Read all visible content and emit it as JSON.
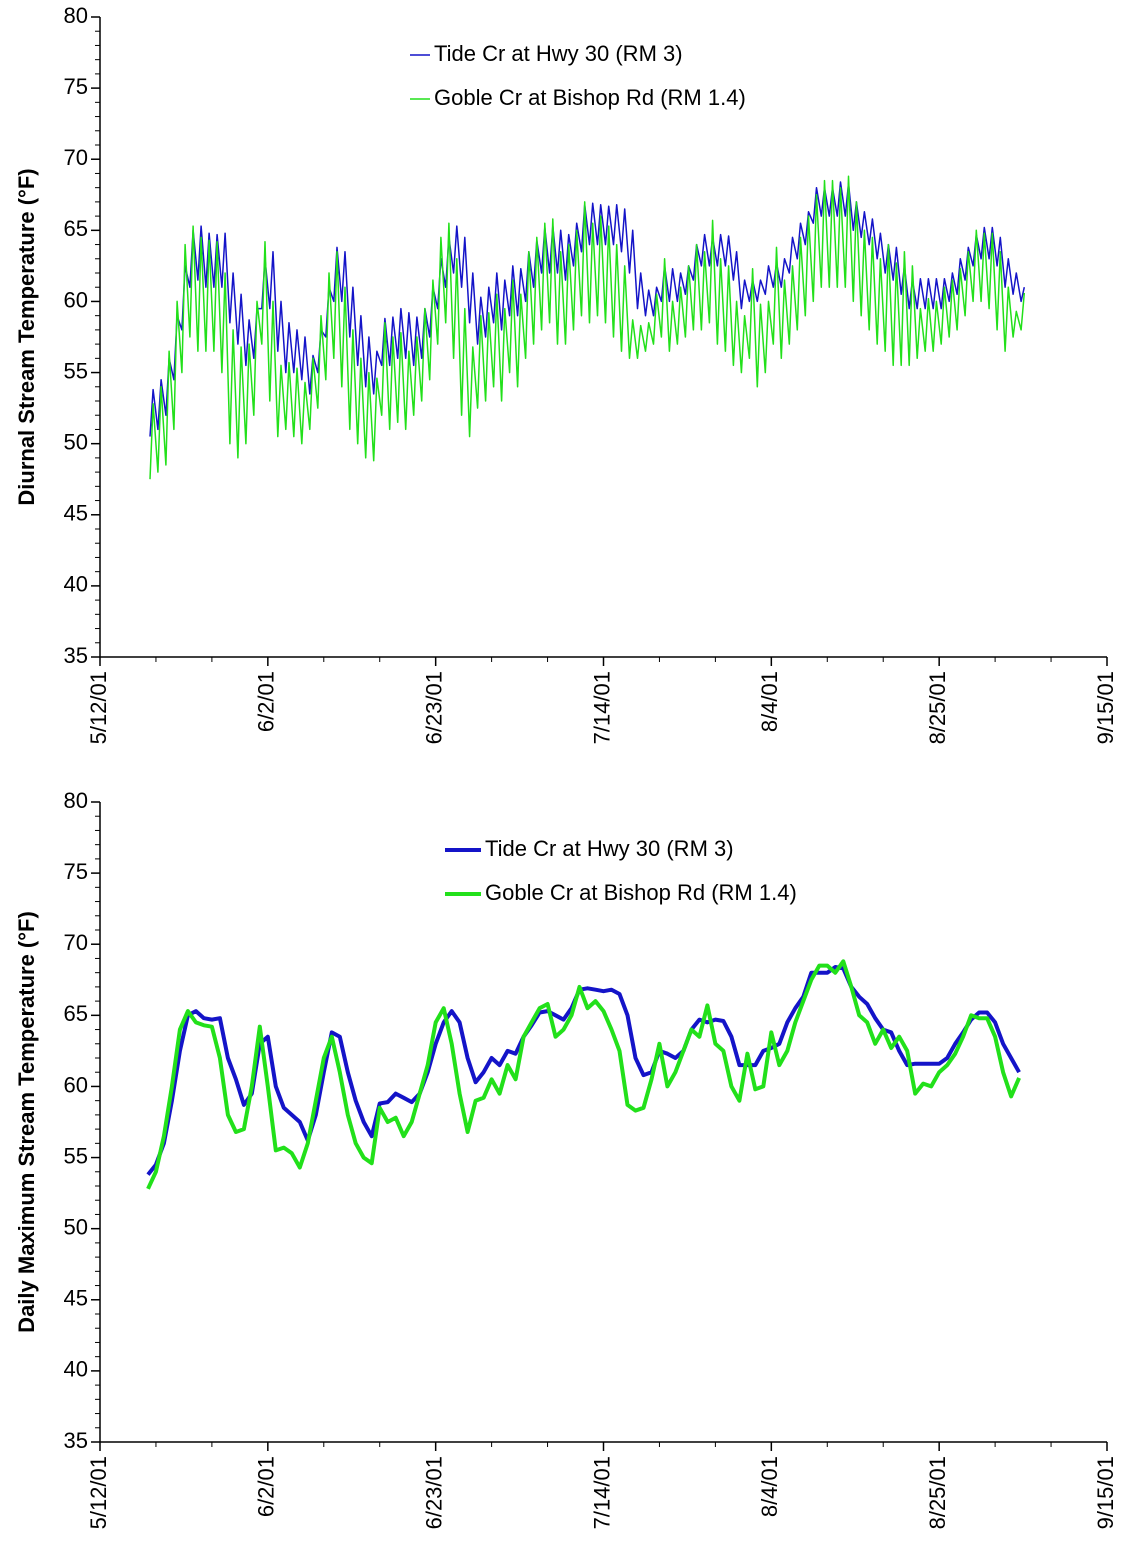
{
  "chart_data": [
    {
      "type": "range",
      "y_label": "Diurnal Stream Temperature (°F)",
      "legend": "top",
      "x": [
        "5/18/01",
        "5/19/01",
        "5/20/01",
        "5/21/01",
        "5/22/01",
        "5/23/01",
        "5/24/01",
        "5/25/01",
        "5/26/01",
        "5/27/01",
        "5/28/01",
        "5/29/01",
        "5/30/01",
        "5/31/01",
        "6/1/01",
        "6/2/01",
        "6/3/01",
        "6/4/01",
        "6/5/01",
        "6/6/01",
        "6/7/01",
        "6/8/01",
        "6/9/01",
        "6/10/01",
        "6/11/01",
        "6/12/01",
        "6/13/01",
        "6/14/01",
        "6/15/01",
        "6/16/01",
        "6/17/01",
        "6/18/01",
        "6/19/01",
        "6/20/01",
        "6/21/01",
        "6/22/01",
        "6/23/01",
        "6/24/01",
        "6/25/01",
        "6/26/01",
        "6/27/01",
        "6/28/01",
        "6/29/01",
        "6/30/01",
        "7/1/01",
        "7/2/01",
        "7/3/01",
        "7/4/01",
        "7/5/01",
        "7/6/01",
        "7/7/01",
        "7/8/01",
        "7/9/01",
        "7/10/01",
        "7/11/01",
        "7/12/01",
        "7/13/01",
        "7/14/01",
        "7/15/01",
        "7/16/01",
        "7/17/01",
        "7/18/01",
        "7/19/01",
        "7/20/01",
        "7/21/01",
        "7/22/01",
        "7/23/01",
        "7/24/01",
        "7/25/01",
        "7/26/01",
        "7/27/01",
        "7/28/01",
        "7/29/01",
        "7/30/01",
        "7/31/01",
        "8/1/01",
        "8/2/01",
        "8/3/01",
        "8/4/01",
        "8/5/01",
        "8/6/01",
        "8/7/01",
        "8/8/01",
        "8/9/01",
        "8/10/01",
        "8/11/01",
        "8/12/01",
        "8/13/01",
        "8/14/01",
        "8/15/01",
        "8/16/01",
        "8/17/01",
        "8/18/01",
        "8/19/01",
        "8/20/01",
        "8/21/01",
        "8/22/01",
        "8/23/01",
        "8/24/01",
        "8/25/01",
        "8/26/01",
        "8/27/01",
        "8/28/01",
        "8/29/01",
        "8/30/01",
        "8/31/01",
        "9/1/01",
        "9/2/01",
        "9/3/01",
        "9/4/01"
      ],
      "series": [
        {
          "name": "Tide Cr at Hwy 30 (RM 3)",
          "color": "#1414c8",
          "values": [
            53.8,
            54.5,
            56,
            59,
            62.5,
            65,
            65.3,
            64.8,
            64.7,
            64.8,
            62,
            60.5,
            58.7,
            59.5,
            63,
            63.5,
            60,
            58.5,
            58,
            57.5,
            56.2,
            58,
            61,
            63.8,
            63.5,
            61,
            59,
            57.5,
            56.5,
            58.8,
            58.9,
            59.5,
            59.2,
            58.9,
            59.5,
            61,
            63,
            64.5,
            65.3,
            64.5,
            62,
            60.3,
            61,
            62,
            61.5,
            62.5,
            62.3,
            63.5,
            64.3,
            65.2,
            65.3,
            65,
            64.7,
            65.5,
            66.8,
            66.9,
            66.8,
            66.7,
            66.8,
            66.5,
            65,
            62,
            60.8,
            61,
            62.5,
            62.3,
            62,
            62.5,
            64,
            64.7,
            64.5,
            64.7,
            64.6,
            63.5,
            61.5,
            61.5,
            61.5,
            62.5,
            62.7,
            63,
            64.5,
            65.5,
            66.3,
            68,
            68,
            68,
            68.4,
            68.3,
            67,
            66.3,
            65.8,
            64.8,
            64,
            63.8,
            62.5,
            61.5,
            61.6,
            61.6,
            61.6,
            61.6,
            62,
            63,
            63.8,
            64.7,
            65.2,
            65.2,
            64.5,
            63,
            62,
            61
          ],
          "min_values": [
            50.5,
            51,
            52,
            54.5,
            58,
            61,
            61.5,
            61,
            61,
            61,
            58.5,
            57,
            55.5,
            56,
            59.5,
            59.5,
            56.5,
            55,
            55,
            54.5,
            53.5,
            55,
            57.5,
            60,
            60,
            57.5,
            55.5,
            54,
            53.5,
            55.5,
            55.5,
            56,
            56,
            55.5,
            56,
            57.5,
            59.5,
            61,
            62,
            61,
            58.5,
            57,
            57.5,
            58.5,
            58,
            59,
            59,
            60,
            61,
            62,
            62,
            62,
            61.5,
            62.5,
            63.5,
            64,
            64,
            64,
            64,
            63.5,
            62,
            59.5,
            59,
            59,
            60,
            60,
            60,
            60.5,
            61.5,
            62.5,
            62.5,
            62.5,
            62.5,
            61.5,
            59.5,
            60,
            60,
            60.5,
            61,
            61,
            62,
            63,
            64,
            65.5,
            66,
            66,
            66,
            66,
            65,
            64.5,
            64,
            63,
            62,
            61.5,
            60.5,
            59.5,
            59.5,
            59.5,
            59.5,
            59.5,
            60,
            60.5,
            61.5,
            62.5,
            63,
            63,
            62.5,
            61,
            60.5,
            60
          ]
        },
        {
          "name": "Goble Cr at Bishop Rd (RM 1.4)",
          "color": "#22e01a",
          "values": [
            52.8,
            54,
            56.5,
            60,
            64,
            65.3,
            64.5,
            64.3,
            64.2,
            62,
            58,
            56.8,
            57,
            60,
            64.2,
            60,
            55.5,
            55.7,
            55.3,
            54.3,
            56,
            59,
            62,
            63.5,
            61,
            58,
            56,
            55,
            54.6,
            58.5,
            57.5,
            57.8,
            56.5,
            57.5,
            59.5,
            61.5,
            64.5,
            65.5,
            63,
            59.5,
            56.8,
            59,
            59.2,
            60.5,
            59.5,
            61.5,
            60.5,
            63.5,
            64.5,
            65.5,
            65.8,
            63.5,
            64,
            65,
            67,
            65.5,
            66,
            65.3,
            64,
            62.5,
            58.7,
            58.3,
            58.5,
            60.5,
            63,
            60,
            61,
            62.5,
            64,
            63.5,
            65.7,
            63,
            62.5,
            60,
            59,
            62.3,
            59.8,
            60,
            63.8,
            61.5,
            62.5,
            64.5,
            66,
            67.5,
            68.5,
            68.5,
            68,
            68.8,
            67,
            65,
            64.5,
            63,
            64,
            62.7,
            63.5,
            62.5,
            59.5,
            60.2,
            60,
            61,
            61.5,
            62.3,
            63.5,
            65,
            64.8,
            64.8,
            63.5,
            61,
            59.3,
            60.6
          ],
          "min_values": [
            47.5,
            48,
            48.5,
            51,
            55,
            57.5,
            56.5,
            56.5,
            56.5,
            55,
            50,
            49,
            50,
            52,
            57,
            53,
            50.5,
            51,
            50.5,
            50,
            51,
            52.5,
            54.5,
            56,
            54,
            51,
            50,
            49,
            48.8,
            52,
            51,
            51.5,
            51,
            52,
            53,
            54.5,
            57,
            58.5,
            56,
            52,
            50.5,
            52.5,
            53,
            54,
            53,
            55,
            54,
            56,
            57,
            58,
            58.5,
            57,
            57,
            58,
            59,
            58.5,
            59,
            58.5,
            57.5,
            56.5,
            56,
            56,
            56.5,
            57,
            57.5,
            56.5,
            57,
            57.5,
            58,
            58,
            58.5,
            57,
            56.5,
            55.5,
            55,
            56,
            54,
            55,
            57,
            56,
            57,
            58,
            59,
            60,
            61,
            61,
            61,
            61,
            60,
            59,
            58,
            57,
            56.5,
            55.5,
            55.5,
            55.5,
            56,
            56.5,
            56.5,
            57,
            57.5,
            58,
            59,
            60,
            60,
            59.5,
            58,
            56.5,
            57.5,
            58
          ]
        }
      ],
      "xlim": [
        "5/12/01",
        "9/15/01"
      ],
      "xticks": [
        "5/12/01",
        "6/2/01",
        "6/23/01",
        "7/14/01",
        "8/4/01",
        "8/25/01",
        "9/15/01"
      ],
      "ylim": [
        35,
        80
      ],
      "yticks": [
        35,
        40,
        45,
        50,
        55,
        60,
        65,
        70,
        75,
        80
      ]
    },
    {
      "type": "line",
      "y_label": "Daily Maximum Stream Temperature (°F)",
      "legend": "top",
      "x": [
        "5/18/01",
        "5/19/01",
        "5/20/01",
        "5/21/01",
        "5/22/01",
        "5/23/01",
        "5/24/01",
        "5/25/01",
        "5/26/01",
        "5/27/01",
        "5/28/01",
        "5/29/01",
        "5/30/01",
        "5/31/01",
        "6/1/01",
        "6/2/01",
        "6/3/01",
        "6/4/01",
        "6/5/01",
        "6/6/01",
        "6/7/01",
        "6/8/01",
        "6/9/01",
        "6/10/01",
        "6/11/01",
        "6/12/01",
        "6/13/01",
        "6/14/01",
        "6/15/01",
        "6/16/01",
        "6/17/01",
        "6/18/01",
        "6/19/01",
        "6/20/01",
        "6/21/01",
        "6/22/01",
        "6/23/01",
        "6/24/01",
        "6/25/01",
        "6/26/01",
        "6/27/01",
        "6/28/01",
        "6/29/01",
        "6/30/01",
        "7/1/01",
        "7/2/01",
        "7/3/01",
        "7/4/01",
        "7/5/01",
        "7/6/01",
        "7/7/01",
        "7/8/01",
        "7/9/01",
        "7/10/01",
        "7/11/01",
        "7/12/01",
        "7/13/01",
        "7/14/01",
        "7/15/01",
        "7/16/01",
        "7/17/01",
        "7/18/01",
        "7/19/01",
        "7/20/01",
        "7/21/01",
        "7/22/01",
        "7/23/01",
        "7/24/01",
        "7/25/01",
        "7/26/01",
        "7/27/01",
        "7/28/01",
        "7/29/01",
        "7/30/01",
        "7/31/01",
        "8/1/01",
        "8/2/01",
        "8/3/01",
        "8/4/01",
        "8/5/01",
        "8/6/01",
        "8/7/01",
        "8/8/01",
        "8/9/01",
        "8/10/01",
        "8/11/01",
        "8/12/01",
        "8/13/01",
        "8/14/01",
        "8/15/01",
        "8/16/01",
        "8/17/01",
        "8/18/01",
        "8/19/01",
        "8/20/01",
        "8/21/01",
        "8/22/01",
        "8/23/01",
        "8/24/01",
        "8/25/01",
        "8/26/01",
        "8/27/01",
        "8/28/01",
        "8/29/01",
        "8/30/01",
        "8/31/01",
        "9/1/01",
        "9/2/01",
        "9/3/01",
        "9/4/01"
      ],
      "series": [
        {
          "name": "Tide Cr at Hwy 30 (RM 3)",
          "color": "#1414c8",
          "values": [
            53.8,
            54.5,
            56,
            59,
            62.5,
            65,
            65.3,
            64.8,
            64.7,
            64.8,
            62,
            60.5,
            58.7,
            59.5,
            63,
            63.5,
            60,
            58.5,
            58,
            57.5,
            56.2,
            58,
            61,
            63.8,
            63.5,
            61,
            59,
            57.5,
            56.5,
            58.8,
            58.9,
            59.5,
            59.2,
            58.9,
            59.5,
            61,
            63,
            64.5,
            65.3,
            64.5,
            62,
            60.3,
            61,
            62,
            61.5,
            62.5,
            62.3,
            63.5,
            64.3,
            65.2,
            65.3,
            65,
            64.7,
            65.5,
            66.8,
            66.9,
            66.8,
            66.7,
            66.8,
            66.5,
            65,
            62,
            60.8,
            61,
            62.5,
            62.3,
            62,
            62.5,
            64,
            64.7,
            64.5,
            64.7,
            64.6,
            63.5,
            61.5,
            61.5,
            61.5,
            62.5,
            62.7,
            63,
            64.5,
            65.5,
            66.3,
            68,
            68,
            68,
            68.4,
            68.3,
            67,
            66.3,
            65.8,
            64.8,
            64,
            63.8,
            62.5,
            61.5,
            61.6,
            61.6,
            61.6,
            61.6,
            62,
            63,
            63.8,
            64.7,
            65.2,
            65.2,
            64.5,
            63,
            62,
            61
          ]
        },
        {
          "name": "Goble Cr at Bishop Rd (RM 1.4)",
          "color": "#22e01a",
          "values": [
            52.8,
            54,
            56.5,
            60,
            64,
            65.3,
            64.5,
            64.3,
            64.2,
            62,
            58,
            56.8,
            57,
            60,
            64.2,
            60,
            55.5,
            55.7,
            55.3,
            54.3,
            56,
            59,
            62,
            63.5,
            61,
            58,
            56,
            55,
            54.6,
            58.5,
            57.5,
            57.8,
            56.5,
            57.5,
            59.5,
            61.5,
            64.5,
            65.5,
            63,
            59.5,
            56.8,
            59,
            59.2,
            60.5,
            59.5,
            61.5,
            60.5,
            63.5,
            64.5,
            65.5,
            65.8,
            63.5,
            64,
            65,
            67,
            65.5,
            66,
            65.3,
            64,
            62.5,
            58.7,
            58.3,
            58.5,
            60.5,
            63,
            60,
            61,
            62.5,
            64,
            63.5,
            65.7,
            63,
            62.5,
            60,
            59,
            62.3,
            59.8,
            60,
            63.8,
            61.5,
            62.5,
            64.5,
            66,
            67.5,
            68.5,
            68.5,
            68,
            68.8,
            67,
            65,
            64.5,
            63,
            64,
            62.7,
            63.5,
            62.5,
            59.5,
            60.2,
            60,
            61,
            61.5,
            62.3,
            63.5,
            65,
            64.8,
            64.8,
            63.5,
            61,
            59.3,
            60.6
          ]
        }
      ],
      "xlim": [
        "5/12/01",
        "9/15/01"
      ],
      "xticks": [
        "5/12/01",
        "6/2/01",
        "6/23/01",
        "7/14/01",
        "8/4/01",
        "8/25/01",
        "9/15/01"
      ],
      "ylim": [
        35,
        80
      ],
      "yticks": [
        35,
        40,
        45,
        50,
        55,
        60,
        65,
        70,
        75,
        80
      ]
    }
  ]
}
